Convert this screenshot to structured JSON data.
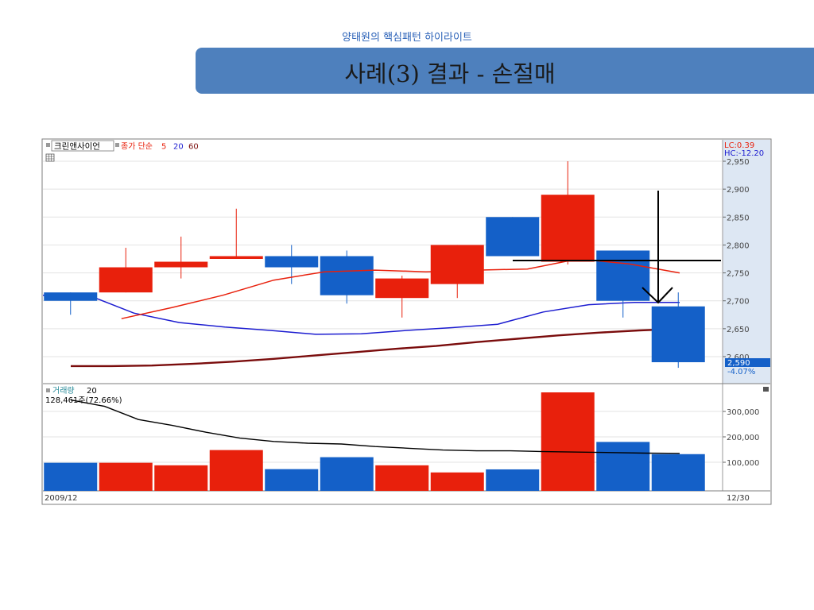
{
  "slide": {
    "subtitle": "양태원의 핵심패턴 하이라이트",
    "title": "사례(3) 결과 - 손절매"
  },
  "legend": {
    "stock_name": "크린앤사이언",
    "ma_prefix": "종가 단순",
    "ma_periods": [
      "5",
      "20",
      "60"
    ],
    "lc": "LC:0.39",
    "hc": "HC:-12.20",
    "volume_label": "거래량",
    "volume_period": "20",
    "volume_value": "128,461주(72.66%)",
    "current_price": "2,590",
    "current_change": "-4.07%",
    "date_start": "2009/12",
    "date_end": "12/30"
  },
  "colors": {
    "up": "#e8200c",
    "down": "#1460c8",
    "ma5": "#e8200c",
    "ma20": "#1c1cd0",
    "ma60": "#7a0c0c",
    "axis_bg": "#dde7f3",
    "banner": "#4e80bd",
    "subtitle": "#2b62b8"
  },
  "chart_data": [
    {
      "type": "candlestick",
      "ylim": [
        2560,
        2960
      ],
      "yticks": [
        "2,950",
        "2,900",
        "2,850",
        "2,800",
        "2,750",
        "2,700",
        "2,650",
        "2,600"
      ],
      "candles": [
        {
          "open": 2715,
          "close": 2700,
          "high": 2715,
          "low": 2675
        },
        {
          "open": 2715,
          "close": 2760,
          "high": 2795,
          "low": 2715
        },
        {
          "open": 2760,
          "close": 2770,
          "high": 2815,
          "low": 2740
        },
        {
          "open": 2775,
          "close": 2780,
          "high": 2865,
          "low": 2775
        },
        {
          "open": 2780,
          "close": 2760,
          "high": 2800,
          "low": 2730
        },
        {
          "open": 2780,
          "close": 2710,
          "high": 2790,
          "low": 2695
        },
        {
          "open": 2705,
          "close": 2740,
          "high": 2745,
          "low": 2670
        },
        {
          "open": 2730,
          "close": 2800,
          "high": 2800,
          "low": 2705
        },
        {
          "open": 2850,
          "close": 2780,
          "high": 2850,
          "low": 2780
        },
        {
          "open": 2770,
          "close": 2890,
          "high": 2950,
          "low": 2765
        },
        {
          "open": 2790,
          "close": 2700,
          "high": 2790,
          "low": 2670
        },
        {
          "open": 2690,
          "close": 2590,
          "high": 2715,
          "low": 2580
        }
      ],
      "series": [
        {
          "name": "5",
          "values": [
            null,
            2668,
            2688,
            2710,
            2737,
            2752,
            2755,
            2752,
            2755,
            2757,
            2775,
            2766,
            2750
          ]
        },
        {
          "name": "20",
          "values": [
            2710,
            2710,
            2678,
            2661,
            2653,
            2647,
            2640,
            2641,
            2647,
            2652,
            2658,
            2680,
            2693,
            2697,
            2697
          ]
        },
        {
          "name": "60",
          "values": [
            2583,
            2583,
            2584,
            2587,
            2591,
            2596,
            2602,
            2608,
            2614,
            2619,
            2626,
            2632,
            2638,
            2643,
            2647,
            2650
          ]
        }
      ]
    },
    {
      "type": "bar",
      "ylim": [
        0,
        400000
      ],
      "yticks": [
        "300,000",
        "200,000",
        "100,000"
      ],
      "values": [
        98000,
        98000,
        88000,
        148000,
        73000,
        120000,
        88000,
        60000,
        72000,
        375000,
        180000,
        132000
      ],
      "up": [
        false,
        true,
        true,
        true,
        false,
        false,
        true,
        true,
        false,
        true,
        false,
        false
      ],
      "series": [
        {
          "name": "20",
          "values": [
            345000,
            320000,
            268000,
            245000,
            218000,
            195000,
            182000,
            175000,
            172000,
            162000,
            155000,
            148000,
            145000,
            145000,
            142000,
            140000,
            138000,
            136000,
            135000
          ]
        }
      ]
    }
  ]
}
